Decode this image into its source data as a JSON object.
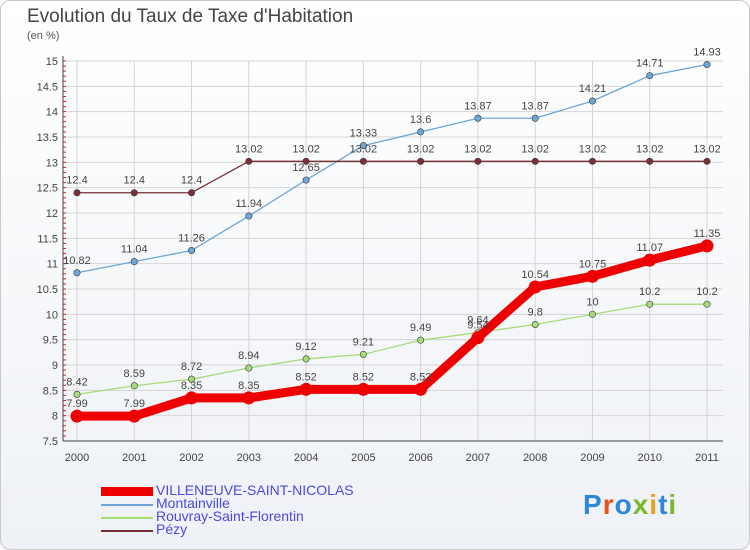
{
  "title": "Evolution du Taux de Taxe d'Habitation",
  "subtitle": "(en %)",
  "logo": {
    "text": "Proxiti",
    "colors": [
      "#2e8ad8",
      "#e8521e",
      "#2e8ad8",
      "#7ab82a",
      "#e8a21e",
      "#2e8ad8",
      "#7ab82a"
    ]
  },
  "chart_data": {
    "type": "line",
    "x": [
      "2000",
      "2001",
      "2002",
      "2003",
      "2004",
      "2005",
      "2006",
      "2007",
      "2008",
      "2009",
      "2010",
      "2011"
    ],
    "ylim": [
      7.5,
      15
    ],
    "yticks": [
      "7.5",
      "8",
      "8.5",
      "9",
      "9.5",
      "10",
      "10.5",
      "11",
      "11.5",
      "12",
      "12.5",
      "13",
      "13.5",
      "14",
      "14.5",
      "15"
    ],
    "grid": true,
    "legend_position": "bottom-left",
    "series": [
      {
        "name": "VILLENEUVE-SAINT-NICOLAS",
        "color": "#ee0000",
        "width": 9,
        "marker": 6.5,
        "values": [
          7.99,
          7.99,
          8.35,
          8.35,
          8.52,
          8.52,
          8.52,
          9.54,
          10.54,
          10.75,
          11.07,
          11.35
        ],
        "labels": [
          "7.99",
          "7.99",
          "8.35",
          "8.35",
          "8.52",
          "8.52",
          "8.52",
          "9.54",
          "10.54",
          "10.75",
          "11.07",
          "11.35"
        ]
      },
      {
        "name": "Montainville",
        "color": "#6fa6d8",
        "width": 1.3,
        "marker": 3.2,
        "values": [
          10.82,
          11.04,
          11.26,
          11.94,
          12.65,
          13.33,
          13.6,
          13.87,
          13.87,
          14.21,
          14.71,
          14.93
        ],
        "labels": [
          "10.82",
          "11.04",
          "11.26",
          "11.94",
          "12.65",
          "13.33",
          "13.6",
          "13.87",
          "13.87",
          "14.21",
          "14.71",
          "14.93"
        ]
      },
      {
        "name": "Rouvray-Saint-Florentin",
        "color": "#a6dc78",
        "width": 1.3,
        "marker": 3.2,
        "values": [
          8.42,
          8.59,
          8.72,
          8.94,
          9.12,
          9.21,
          9.49,
          9.64,
          9.8,
          10,
          10.2,
          10.2
        ],
        "labels": [
          "8.42",
          "8.59",
          "8.72",
          "8.94",
          "9.12",
          "9.21",
          "9.49",
          "9.64",
          "9.8",
          "10",
          "10.2",
          "10.2"
        ]
      },
      {
        "name": "Pézy",
        "color": "#7a3038",
        "width": 1.3,
        "marker": 3.2,
        "values": [
          12.4,
          12.4,
          12.4,
          13.02,
          13.02,
          13.02,
          13.02,
          13.02,
          13.02,
          13.02,
          13.02,
          13.02
        ],
        "labels": [
          "12.4",
          "12.4",
          "12.4",
          "13.02",
          "13.02",
          "13.02",
          "13.02",
          "13.02",
          "13.02",
          "13.02",
          "13.02",
          "13.02"
        ]
      }
    ]
  }
}
